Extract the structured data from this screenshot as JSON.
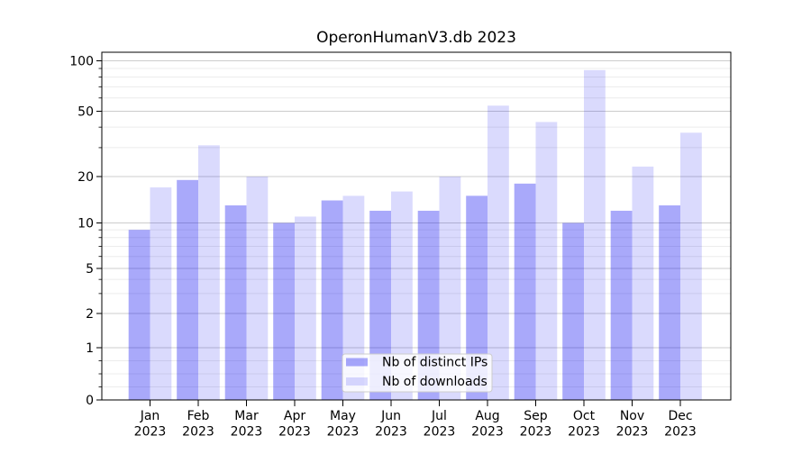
{
  "chart_data": {
    "type": "bar",
    "title": "OperonHumanV3.db 2023",
    "categories": [
      "Jan",
      "Feb",
      "Mar",
      "Apr",
      "May",
      "Jun",
      "Jul",
      "Aug",
      "Sep",
      "Oct",
      "Nov",
      "Dec"
    ],
    "category_year_line": "2023",
    "series": [
      {
        "name": "Nb of distinct IPs",
        "color": "rgba(10,10,240,0.35)",
        "values": [
          9,
          19,
          13,
          10,
          14,
          12,
          12,
          15,
          18,
          10,
          12,
          13
        ]
      },
      {
        "name": "Nb of downloads",
        "color": "rgba(10,10,240,0.15)",
        "values": [
          17,
          31,
          20,
          11,
          15,
          16,
          20,
          54,
          43,
          88,
          23,
          37
        ]
      }
    ],
    "xlabel": "",
    "ylabel": "",
    "yscale": "symlog",
    "y_tick_labels": [
      "100",
      "50",
      "20",
      "10",
      "5",
      "2",
      "1",
      "0"
    ],
    "y_ticks": [
      100,
      50,
      20,
      10,
      5,
      2,
      1,
      0
    ],
    "y_minor_ticks": [
      0.25,
      0.5,
      0.75,
      3,
      4,
      6,
      7,
      8,
      9,
      30,
      40,
      60,
      70,
      80,
      90
    ],
    "ylim": [
      0,
      114
    ],
    "grid": true,
    "legend_position": "lower center"
  },
  "colors": {
    "bar_distinct_ips": "rgba(10,10,240,0.35)",
    "bar_downloads": "rgba(10,10,240,0.15)",
    "grid_major": "#cccccc",
    "grid_minor": "#ececec",
    "axis": "#000000",
    "legend_border": "#cccccc",
    "legend_bg": "rgba(255,255,255,0.8)"
  }
}
